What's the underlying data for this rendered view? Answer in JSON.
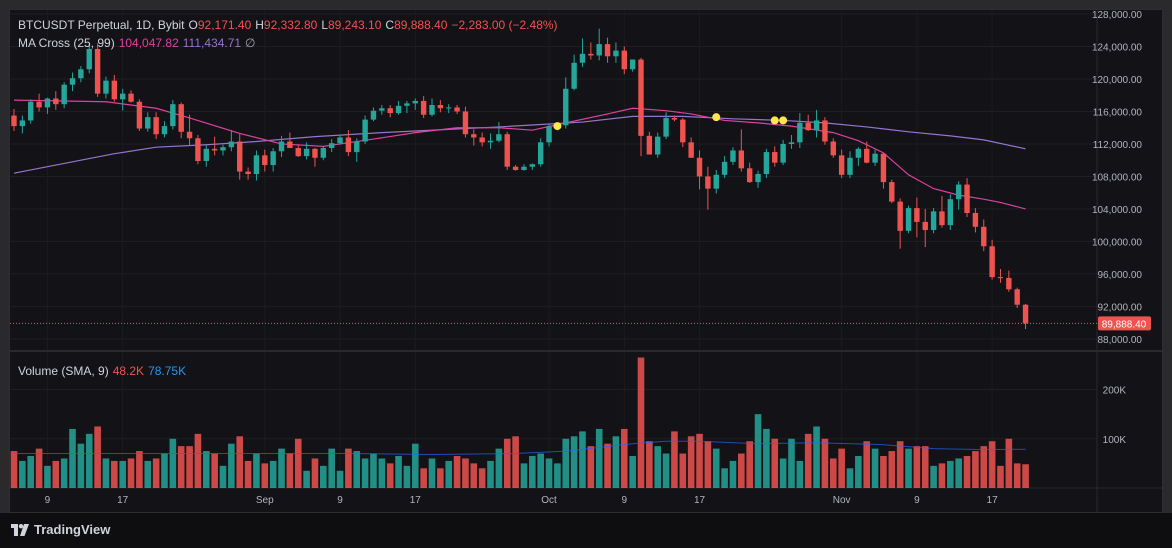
{
  "header": {
    "symbol": "BTCUSDT Perpetual, 1D, Bybit",
    "open_label": "O",
    "open": "92,171.40",
    "high_label": "H",
    "high": "92,332.80",
    "low_label": "L",
    "low": "89,243.10",
    "close_label": "C",
    "close": "89,888.40",
    "change": "−2,283.00 (−2.48%)"
  },
  "ma_legend": {
    "name": "MA Cross (25, 99)",
    "fast": "104,047.82",
    "slow": "111,434.71",
    "hide_symbol": "∅"
  },
  "volume_legend": {
    "name": "Volume (SMA, 9)",
    "current": "48.2K",
    "sma": "78.75K"
  },
  "price_axis": {
    "labels": [
      "128,000.00",
      "124,000.00",
      "120,000.00",
      "116,000.00",
      "112,000.00",
      "108,000.00",
      "104,000.00",
      "100,000.00",
      "96,000.00",
      "92,000.00",
      "88,000.00"
    ],
    "last_price": "89,888.40"
  },
  "volume_axis": {
    "labels": [
      "200K",
      "100K"
    ]
  },
  "time_axis": {
    "labels": [
      "9",
      "17",
      "Sep",
      "9",
      "17",
      "Oct",
      "9",
      "17",
      "Nov",
      "9",
      "17"
    ]
  },
  "colors": {
    "up": "#26a69a",
    "down": "#ef5350",
    "ma_fast": "#e040a0",
    "ma_slow": "#9575cd",
    "cross": "#ffe74a",
    "vol_sma": "#2962ff"
  },
  "footer": {
    "brand": "TradingView"
  },
  "chart_data": {
    "type": "candlestick",
    "title": "BTCUSDT Perpetual, 1D, Bybit",
    "price_range": [
      86500,
      128500
    ],
    "volume_range": [
      0,
      260000
    ],
    "candles": [
      [
        115500,
        116300,
        113600,
        114200,
        75000
      ],
      [
        114200,
        115500,
        113300,
        114900,
        55000
      ],
      [
        114900,
        117500,
        114500,
        117200,
        65000
      ],
      [
        117200,
        118200,
        116000,
        116500,
        80000
      ],
      [
        116500,
        117700,
        115700,
        117600,
        45000
      ],
      [
        117600,
        118500,
        116200,
        116900,
        55000
      ],
      [
        116900,
        119600,
        116400,
        119300,
        60000
      ],
      [
        119300,
        120800,
        118500,
        120100,
        120000
      ],
      [
        120100,
        121600,
        119600,
        121200,
        90000
      ],
      [
        121200,
        124300,
        120700,
        123700,
        110000
      ],
      [
        123700,
        124400,
        117800,
        118200,
        125000
      ],
      [
        118200,
        120300,
        117600,
        119800,
        60000
      ],
      [
        119800,
        120500,
        117200,
        117500,
        55000
      ],
      [
        117500,
        118800,
        116100,
        118200,
        55000
      ],
      [
        118200,
        118600,
        117100,
        117200,
        60000
      ],
      [
        117200,
        117500,
        113600,
        113900,
        75000
      ],
      [
        113900,
        115900,
        113500,
        115300,
        55000
      ],
      [
        115300,
        115900,
        112600,
        113200,
        60000
      ],
      [
        113200,
        114800,
        112800,
        114200,
        70000
      ],
      [
        114200,
        117400,
        113800,
        116900,
        100000
      ],
      [
        116900,
        117100,
        112700,
        113500,
        85000
      ],
      [
        113500,
        115600,
        111800,
        112700,
        85000
      ],
      [
        112700,
        113100,
        109500,
        109900,
        110000
      ],
      [
        109900,
        111900,
        109200,
        111400,
        75000
      ],
      [
        111400,
        112900,
        110600,
        111200,
        70000
      ],
      [
        111200,
        111900,
        110600,
        111600,
        45000
      ],
      [
        111600,
        113700,
        111100,
        112300,
        90000
      ],
      [
        112300,
        113200,
        107600,
        108600,
        105000
      ],
      [
        108600,
        109100,
        107600,
        108300,
        55000
      ],
      [
        108300,
        111200,
        107500,
        110600,
        70000
      ],
      [
        110600,
        111300,
        108600,
        109400,
        50000
      ],
      [
        109400,
        111500,
        108600,
        111100,
        55000
      ],
      [
        111100,
        113000,
        110400,
        112300,
        80000
      ],
      [
        112300,
        113400,
        111500,
        111500,
        70000
      ],
      [
        111500,
        111900,
        110400,
        110500,
        100000
      ],
      [
        110500,
        112200,
        110100,
        111400,
        35000
      ],
      [
        111400,
        111500,
        109200,
        110300,
        60000
      ],
      [
        110300,
        111700,
        110000,
        111500,
        45000
      ],
      [
        111500,
        112600,
        111000,
        112100,
        80000
      ],
      [
        112100,
        113000,
        111900,
        112800,
        35000
      ],
      [
        112800,
        113700,
        110500,
        111000,
        80000
      ],
      [
        111000,
        112700,
        109800,
        112300,
        75000
      ],
      [
        112300,
        115500,
        112000,
        115000,
        60000
      ],
      [
        115000,
        116500,
        114800,
        116100,
        70000
      ],
      [
        116100,
        116800,
        115600,
        116400,
        60000
      ],
      [
        116400,
        116800,
        115300,
        115800,
        50000
      ],
      [
        115800,
        117300,
        115600,
        116700,
        65000
      ],
      [
        116700,
        117300,
        115800,
        117000,
        45000
      ],
      [
        117000,
        117600,
        116200,
        117300,
        90000
      ],
      [
        117300,
        117900,
        115200,
        115600,
        40000
      ],
      [
        115600,
        117600,
        115400,
        116800,
        60000
      ],
      [
        116800,
        117400,
        115900,
        116400,
        40000
      ],
      [
        116400,
        116900,
        115800,
        116500,
        55000
      ],
      [
        116500,
        116800,
        115700,
        116000,
        65000
      ],
      [
        116000,
        116600,
        112800,
        113200,
        60000
      ],
      [
        113200,
        113800,
        111800,
        112800,
        50000
      ],
      [
        112800,
        113400,
        111700,
        112200,
        40000
      ],
      [
        112200,
        113300,
        111400,
        112400,
        55000
      ],
      [
        112400,
        114700,
        112200,
        113200,
        80000
      ],
      [
        113200,
        113500,
        108800,
        109200,
        100000
      ],
      [
        109200,
        109400,
        108700,
        108800,
        105000
      ],
      [
        108800,
        109500,
        108700,
        109200,
        50000
      ],
      [
        109200,
        109600,
        108800,
        109500,
        65000
      ],
      [
        109500,
        112700,
        109200,
        112200,
        70000
      ],
      [
        112200,
        114400,
        111700,
        114200,
        60000
      ],
      [
        114200,
        114600,
        113700,
        114300,
        50000
      ],
      [
        114300,
        120200,
        113900,
        118800,
        100000
      ],
      [
        118800,
        123000,
        118600,
        122000,
        105000
      ],
      [
        122000,
        125000,
        121500,
        123100,
        115000
      ],
      [
        123100,
        124500,
        122400,
        122900,
        85000
      ],
      [
        122900,
        126200,
        122300,
        124300,
        120000
      ],
      [
        124300,
        125100,
        122000,
        122800,
        90000
      ],
      [
        122800,
        124500,
        122000,
        123500,
        105000
      ],
      [
        123500,
        124000,
        120600,
        121200,
        120000
      ],
      [
        121200,
        122400,
        120900,
        122400,
        65000
      ],
      [
        122400,
        122600,
        110500,
        113000,
        265000
      ],
      [
        113000,
        113500,
        110700,
        110700,
        95000
      ],
      [
        110700,
        113400,
        110300,
        112900,
        85000
      ],
      [
        112900,
        115900,
        112600,
        115200,
        70000
      ],
      [
        115200,
        115500,
        114800,
        115000,
        115000
      ],
      [
        115000,
        115200,
        111600,
        112200,
        70000
      ],
      [
        112200,
        112800,
        110300,
        110300,
        105000
      ],
      [
        110300,
        111200,
        106400,
        108000,
        110000
      ],
      [
        108000,
        109200,
        103900,
        106500,
        95000
      ],
      [
        106500,
        108800,
        105900,
        108200,
        80000
      ],
      [
        108200,
        110500,
        107800,
        109800,
        40000
      ],
      [
        109800,
        111600,
        109400,
        111200,
        55000
      ],
      [
        111200,
        113800,
        108600,
        109000,
        70000
      ],
      [
        109000,
        109700,
        107200,
        107300,
        95000
      ],
      [
        107300,
        108700,
        106600,
        108300,
        150000
      ],
      [
        108300,
        111400,
        107800,
        111000,
        120000
      ],
      [
        111000,
        111700,
        109200,
        109700,
        100000
      ],
      [
        109700,
        112500,
        109400,
        112000,
        60000
      ],
      [
        112000,
        113100,
        111400,
        112200,
        100000
      ],
      [
        112200,
        115800,
        111500,
        114600,
        55000
      ],
      [
        114600,
        115600,
        113600,
        113700,
        110000
      ],
      [
        113700,
        116200,
        112800,
        114900,
        125000
      ],
      [
        114900,
        115300,
        111900,
        112300,
        100000
      ],
      [
        112300,
        112700,
        110300,
        110600,
        60000
      ],
      [
        110600,
        111300,
        107800,
        108200,
        80000
      ],
      [
        108200,
        111100,
        107800,
        110300,
        40000
      ],
      [
        110300,
        111600,
        109300,
        111400,
        65000
      ],
      [
        111400,
        112300,
        109600,
        109700,
        95000
      ],
      [
        109700,
        111300,
        109300,
        110800,
        80000
      ],
      [
        110800,
        110900,
        106500,
        107300,
        65000
      ],
      [
        107300,
        107600,
        104700,
        104900,
        75000
      ],
      [
        104900,
        105300,
        99100,
        101300,
        95000
      ],
      [
        101300,
        104400,
        101000,
        104100,
        80000
      ],
      [
        104100,
        105400,
        100500,
        102400,
        85000
      ],
      [
        102400,
        104000,
        99300,
        101400,
        85000
      ],
      [
        101400,
        104100,
        101000,
        103700,
        45000
      ],
      [
        103700,
        105600,
        101700,
        102000,
        50000
      ],
      [
        102000,
        105800,
        101400,
        105200,
        55000
      ],
      [
        105200,
        107400,
        103900,
        107000,
        60000
      ],
      [
        107000,
        107800,
        103000,
        103500,
        65000
      ],
      [
        103500,
        104100,
        101100,
        101800,
        75000
      ],
      [
        101800,
        102700,
        98800,
        99400,
        85000
      ],
      [
        99400,
        100200,
        95300,
        95600,
        95000
      ],
      [
        95600,
        96600,
        94900,
        95500,
        45000
      ],
      [
        95500,
        96400,
        93800,
        94100,
        100000
      ],
      [
        94100,
        94300,
        91800,
        92200,
        50000
      ],
      [
        92200,
        92300,
        89200,
        89900,
        48200
      ]
    ],
    "ma_fast": [
      [
        0,
        117400
      ],
      [
        11,
        117200
      ],
      [
        17,
        116400
      ],
      [
        21,
        115200
      ],
      [
        27,
        113300
      ],
      [
        32,
        112000
      ],
      [
        37,
        111700
      ],
      [
        43,
        112600
      ],
      [
        48,
        113400
      ],
      [
        53,
        114000
      ],
      [
        58,
        114000
      ],
      [
        62,
        113700
      ],
      [
        66,
        114600
      ],
      [
        71,
        115700
      ],
      [
        74,
        116400
      ],
      [
        78,
        116100
      ],
      [
        81,
        115700
      ],
      [
        85,
        114900
      ],
      [
        89,
        114600
      ],
      [
        93,
        114200
      ],
      [
        98,
        113400
      ],
      [
        101,
        112400
      ],
      [
        104,
        110900
      ],
      [
        107,
        108200
      ],
      [
        110,
        106500
      ],
      [
        113,
        105700
      ],
      [
        116,
        105200
      ],
      [
        118,
        104800
      ],
      [
        121,
        104000
      ]
    ],
    "ma_slow": [
      [
        0,
        108400
      ],
      [
        6,
        109600
      ],
      [
        12,
        110800
      ],
      [
        17,
        111600
      ],
      [
        23,
        111900
      ],
      [
        29,
        112300
      ],
      [
        36,
        112900
      ],
      [
        44,
        113400
      ],
      [
        52,
        113800
      ],
      [
        58,
        114100
      ],
      [
        63,
        114400
      ],
      [
        68,
        114700
      ],
      [
        74,
        115400
      ],
      [
        80,
        115400
      ],
      [
        86,
        115100
      ],
      [
        92,
        114900
      ],
      [
        97,
        114600
      ],
      [
        102,
        114100
      ],
      [
        107,
        113500
      ],
      [
        112,
        113000
      ],
      [
        116,
        112500
      ],
      [
        121,
        111400
      ]
    ],
    "ma_crosses": [
      [
        65,
        114200
      ],
      [
        84,
        115300
      ],
      [
        91,
        114900
      ],
      [
        92,
        114900
      ]
    ],
    "volume_sma": [
      [
        0,
        70000
      ],
      [
        10,
        70000
      ],
      [
        20,
        70000
      ],
      [
        30,
        70000
      ],
      [
        40,
        70000
      ],
      [
        50,
        68000
      ],
      [
        60,
        70000
      ],
      [
        66,
        75000
      ],
      [
        74,
        90000
      ],
      [
        78,
        95000
      ],
      [
        82,
        95000
      ],
      [
        89,
        90000
      ],
      [
        96,
        92000
      ],
      [
        104,
        88000
      ],
      [
        110,
        80000
      ],
      [
        116,
        78000
      ],
      [
        121,
        78750
      ]
    ]
  }
}
